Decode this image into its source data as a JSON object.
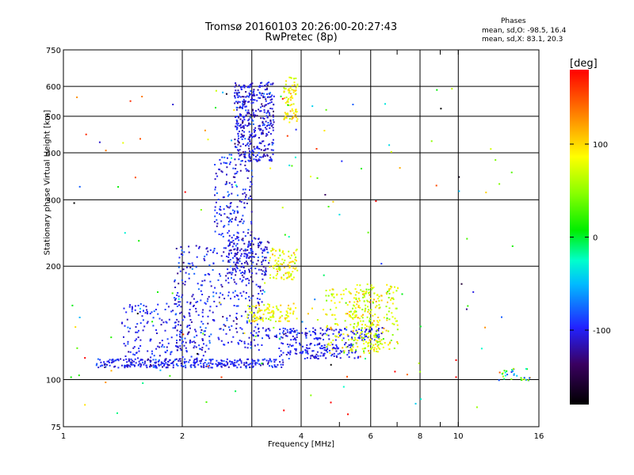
{
  "chart_data": {
    "type": "scatter",
    "title": "Tromsø 20160103 20:26:00-20:27:43",
    "subtitle": "RwPretec (8p)",
    "xlabel": "Frequency [MHz]",
    "ylabel": "Stationary phase Virtual Height [km]",
    "x_scale": "log",
    "y_scale": "log",
    "xlim": [
      1,
      16
    ],
    "ylim": [
      75,
      750
    ],
    "x_ticks": [
      1,
      2,
      4,
      6,
      8,
      10,
      16
    ],
    "x_tick_labels": [
      "1",
      "2",
      "4",
      "6",
      "8",
      "10",
      "16"
    ],
    "x_grid": [
      1,
      2,
      3,
      4,
      6,
      8,
      10
    ],
    "x_minor_ticks": [
      5,
      7,
      9,
      10
    ],
    "y_ticks": [
      75,
      100,
      200,
      300,
      400,
      500,
      600,
      750
    ],
    "y_tick_labels": [
      "75",
      "100",
      "200",
      "300",
      "400",
      "500",
      "600",
      "750"
    ],
    "y_grid": [
      100,
      200,
      300,
      400,
      500,
      600
    ],
    "grid": true,
    "colorbar": {
      "label": "[deg]",
      "range": [
        -180,
        180
      ],
      "ticks": [
        100,
        0,
        -100
      ],
      "tick_labels": [
        "100",
        "0",
        "-100"
      ]
    },
    "legend": {
      "title": "Phases",
      "line_o": "mean, sd,O: -98.5, 16.4",
      "line_x": "mean, sd,X:  83.1, 20.3"
    },
    "series": [
      {
        "id": "o_lower",
        "phase_mean": -100,
        "phase_sd": 12,
        "count": 330,
        "x": [
          1.2,
          3.6
        ],
        "y": [
          108,
          114
        ]
      },
      {
        "id": "o_e_cusp",
        "phase_mean": -100,
        "phase_sd": 12,
        "count": 180,
        "x": [
          1.4,
          2.3
        ],
        "y": [
          112,
          160
        ]
      },
      {
        "id": "o_f1",
        "phase_mean": -100,
        "phase_sd": 14,
        "count": 340,
        "x": [
          1.9,
          3.2
        ],
        "y": [
          120,
          230
        ]
      },
      {
        "id": "o_f2_tower",
        "phase_mean": -105,
        "phase_sd": 15,
        "count": 420,
        "x": [
          2.7,
          3.4
        ],
        "y": [
          380,
          620
        ]
      },
      {
        "id": "o_f2_stalk",
        "phase_mean": -100,
        "phase_sd": 14,
        "count": 160,
        "x": [
          2.4,
          3.0
        ],
        "y": [
          240,
          400
        ]
      },
      {
        "id": "o_cluster_200",
        "phase_mean": -105,
        "phase_sd": 15,
        "count": 160,
        "x": [
          2.6,
          3.3
        ],
        "y": [
          190,
          240
        ]
      },
      {
        "id": "o_trace_mid",
        "phase_mean": -100,
        "phase_sd": 12,
        "count": 170,
        "x": [
          3.0,
          6.4
        ],
        "y": [
          128,
          138
        ]
      },
      {
        "id": "o_trace_low",
        "phase_mean": -100,
        "phase_sd": 12,
        "count": 140,
        "x": [
          3.5,
          5.6
        ],
        "y": [
          114,
          126
        ]
      },
      {
        "id": "x_curve_1",
        "phase_mean": 80,
        "phase_sd": 22,
        "count": 180,
        "x": [
          4.6,
          6.3
        ],
        "y": [
          118,
          175
        ]
      },
      {
        "id": "x_curve_2",
        "phase_mean": 75,
        "phase_sd": 22,
        "count": 170,
        "x": [
          5.4,
          7.0
        ],
        "y": [
          120,
          180
        ]
      },
      {
        "id": "x_mid_band",
        "phase_mean": 85,
        "phase_sd": 18,
        "count": 110,
        "x": [
          2.9,
          3.9
        ],
        "y": [
          143,
          160
        ]
      },
      {
        "id": "x_cluster_200",
        "phase_mean": 85,
        "phase_sd": 18,
        "count": 90,
        "x": [
          3.3,
          3.9
        ],
        "y": [
          185,
          225
        ]
      },
      {
        "id": "x_ripple",
        "phase_mean": 90,
        "phase_sd": 15,
        "count": 80,
        "x": [
          3.6,
          3.9
        ],
        "y": [
          480,
          640
        ]
      },
      {
        "id": "high_freq_tail",
        "phase_mean": 0,
        "phase_sd": 70,
        "count": 32,
        "x": [
          12.6,
          15.2
        ],
        "y": [
          100,
          108
        ]
      },
      {
        "id": "scattered",
        "phase_mean": 30,
        "phase_sd": 110,
        "count": 150,
        "x": [
          1.0,
          14.0
        ],
        "y": [
          80,
          600
        ]
      }
    ]
  }
}
